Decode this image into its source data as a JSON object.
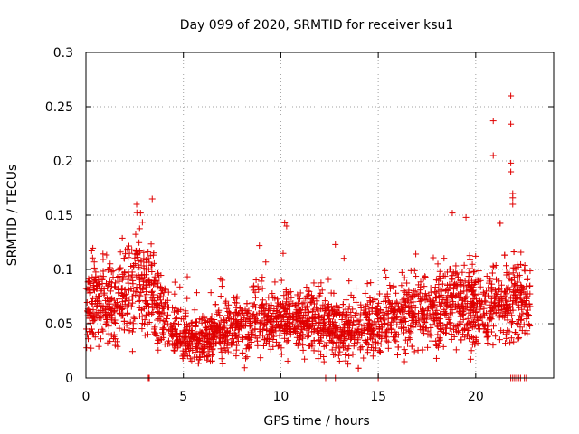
{
  "chart_data": {
    "type": "scatter",
    "title": "Day 099 of 2020, SRMTID for receiver ksu1",
    "xlabel": "GPS time / hours",
    "ylabel": "SRMTID / TECUs",
    "xlim": [
      0,
      24
    ],
    "ylim": [
      0,
      0.3
    ],
    "xticks": [
      0,
      5,
      10,
      15,
      20
    ],
    "yticks": [
      0,
      0.05,
      0.1,
      0.15,
      0.2,
      0.25,
      0.3
    ],
    "xtick_labels": [
      "0",
      "5",
      "10",
      "15",
      "20"
    ],
    "ytick_labels": [
      "0",
      "0.05",
      "0.1",
      "0.15",
      "0.2",
      "0.25",
      "0.3"
    ],
    "grid": true,
    "marker": "+",
    "color": "#e00000",
    "series_name": "ksu1",
    "x_range_observed": [
      0,
      22.8
    ],
    "trend": [
      [
        0.0,
        0.065
      ],
      [
        0.5,
        0.072
      ],
      [
        1.0,
        0.07
      ],
      [
        1.5,
        0.068
      ],
      [
        2.0,
        0.078
      ],
      [
        2.5,
        0.09
      ],
      [
        3.0,
        0.085
      ],
      [
        3.5,
        0.078
      ],
      [
        4.0,
        0.06
      ],
      [
        4.5,
        0.045
      ],
      [
        5.0,
        0.038
      ],
      [
        5.5,
        0.036
      ],
      [
        6.0,
        0.035
      ],
      [
        7.0,
        0.042
      ],
      [
        8.0,
        0.048
      ],
      [
        9.0,
        0.052
      ],
      [
        10.0,
        0.054
      ],
      [
        11.0,
        0.052
      ],
      [
        12.0,
        0.05
      ],
      [
        13.0,
        0.048
      ],
      [
        14.0,
        0.046
      ],
      [
        15.0,
        0.052
      ],
      [
        16.0,
        0.055
      ],
      [
        17.0,
        0.062
      ],
      [
        18.0,
        0.065
      ],
      [
        19.0,
        0.068
      ],
      [
        20.0,
        0.065
      ],
      [
        21.0,
        0.07
      ],
      [
        22.0,
        0.072
      ],
      [
        22.8,
        0.068
      ]
    ],
    "notable_points": [
      {
        "x": 2.6,
        "y": 0.16
      },
      {
        "x": 2.8,
        "y": 0.152
      },
      {
        "x": 3.4,
        "y": 0.165
      },
      {
        "x": 8.9,
        "y": 0.122
      },
      {
        "x": 10.2,
        "y": 0.143
      },
      {
        "x": 10.3,
        "y": 0.14
      },
      {
        "x": 12.8,
        "y": 0.123
      },
      {
        "x": 18.8,
        "y": 0.152
      },
      {
        "x": 19.5,
        "y": 0.148
      },
      {
        "x": 20.9,
        "y": 0.237
      },
      {
        "x": 20.9,
        "y": 0.205
      },
      {
        "x": 21.8,
        "y": 0.26
      },
      {
        "x": 21.8,
        "y": 0.234
      },
      {
        "x": 21.8,
        "y": 0.198
      },
      {
        "x": 21.8,
        "y": 0.19
      },
      {
        "x": 21.9,
        "y": 0.17
      },
      {
        "x": 21.9,
        "y": 0.166
      },
      {
        "x": 21.9,
        "y": 0.16
      }
    ],
    "zero_points_x": [
      3.2,
      3.25,
      12.3,
      12.8,
      15.0,
      21.8,
      21.9,
      22.0,
      22.1,
      22.2,
      22.3,
      22.5,
      22.6
    ]
  }
}
